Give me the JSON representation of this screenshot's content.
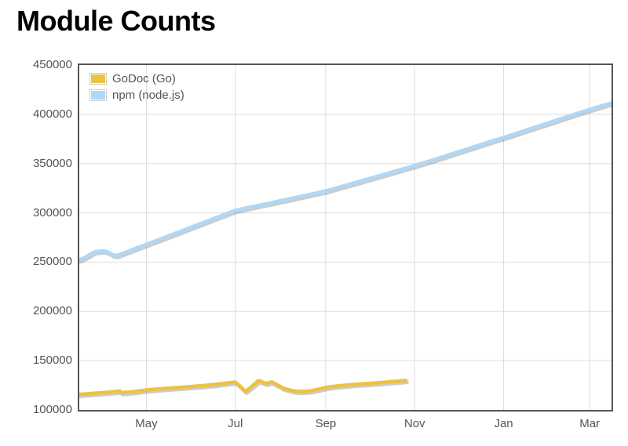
{
  "page": {
    "title": "Module Counts"
  },
  "chart_data": {
    "type": "line",
    "title": "Module Counts",
    "legend_position": "top-left-inside",
    "grid": true,
    "x_axis": {
      "kind": "time",
      "domain_days": [
        0,
        365
      ],
      "ticks": [
        {
          "label": "May",
          "day": 46
        },
        {
          "label": "Jul",
          "day": 107
        },
        {
          "label": "Sep",
          "day": 169
        },
        {
          "label": "Nov",
          "day": 230
        },
        {
          "label": "Jan",
          "day": 291
        },
        {
          "label": "Mar",
          "day": 350
        }
      ]
    },
    "y_axis": {
      "min": 100000,
      "max": 450000,
      "tick_step": 50000,
      "ticks": [
        100000,
        150000,
        200000,
        250000,
        300000,
        350000,
        400000,
        450000
      ],
      "tick_labels": [
        "100000",
        "150000",
        "200000",
        "250000",
        "300000",
        "350000",
        "400000",
        "450000"
      ]
    },
    "series": [
      {
        "key": "godoc",
        "name": "GoDoc (Go)",
        "color": "#EDC240",
        "points": [
          [
            0,
            115800
          ],
          [
            5,
            116300
          ],
          [
            10,
            116900
          ],
          [
            15,
            117400
          ],
          [
            20,
            118100
          ],
          [
            25,
            118700
          ],
          [
            28,
            119100
          ],
          [
            29,
            117500
          ],
          [
            32,
            117900
          ],
          [
            38,
            118700
          ],
          [
            46,
            120300
          ],
          [
            54,
            121200
          ],
          [
            61,
            122100
          ],
          [
            69,
            122900
          ],
          [
            76,
            123700
          ],
          [
            84,
            124600
          ],
          [
            91,
            125500
          ],
          [
            99,
            126900
          ],
          [
            103,
            127700
          ],
          [
            107,
            128300
          ],
          [
            110,
            124500
          ],
          [
            114,
            118800
          ],
          [
            118,
            123500
          ],
          [
            123,
            129800
          ],
          [
            128,
            126900
          ],
          [
            132,
            128400
          ],
          [
            136,
            125300
          ],
          [
            140,
            122000
          ],
          [
            144,
            120300
          ],
          [
            148,
            119200
          ],
          [
            153,
            118800
          ],
          [
            158,
            119200
          ],
          [
            164,
            121000
          ],
          [
            169,
            122800
          ],
          [
            176,
            124200
          ],
          [
            184,
            125400
          ],
          [
            191,
            126200
          ],
          [
            199,
            127000
          ],
          [
            206,
            127700
          ],
          [
            214,
            128700
          ],
          [
            219,
            129300
          ],
          [
            224,
            129900
          ]
        ]
      },
      {
        "key": "npm",
        "name": "npm (node.js)",
        "color": "#AFD8F8",
        "points": [
          [
            0,
            252300
          ],
          [
            3,
            254100
          ],
          [
            6,
            256600
          ],
          [
            9,
            259100
          ],
          [
            11,
            260700
          ],
          [
            13,
            261000
          ],
          [
            16,
            261400
          ],
          [
            18,
            261100
          ],
          [
            20,
            259900
          ],
          [
            23,
            257400
          ],
          [
            26,
            256800
          ],
          [
            29,
            258500
          ],
          [
            34,
            261300
          ],
          [
            40,
            264700
          ],
          [
            46,
            268000
          ],
          [
            53,
            272000
          ],
          [
            61,
            276500
          ],
          [
            69,
            281000
          ],
          [
            76,
            285000
          ],
          [
            84,
            289500
          ],
          [
            91,
            293500
          ],
          [
            99,
            298000
          ],
          [
            107,
            302500
          ],
          [
            114,
            304800
          ],
          [
            122,
            307300
          ],
          [
            130,
            309800
          ],
          [
            137,
            312000
          ],
          [
            145,
            314500
          ],
          [
            152,
            316800
          ],
          [
            160,
            319300
          ],
          [
            169,
            322300
          ],
          [
            177,
            325500
          ],
          [
            184,
            328500
          ],
          [
            192,
            331800
          ],
          [
            199,
            334800
          ],
          [
            207,
            338200
          ],
          [
            214,
            341200
          ],
          [
            222,
            344600
          ],
          [
            230,
            348000
          ],
          [
            238,
            351600
          ],
          [
            245,
            354900
          ],
          [
            253,
            358700
          ],
          [
            260,
            362000
          ],
          [
            268,
            365800
          ],
          [
            275,
            369100
          ],
          [
            283,
            372900
          ],
          [
            291,
            376500
          ],
          [
            298,
            379900
          ],
          [
            306,
            383800
          ],
          [
            314,
            387600
          ],
          [
            321,
            391000
          ],
          [
            329,
            394900
          ],
          [
            336,
            398300
          ],
          [
            343,
            401700
          ],
          [
            350,
            405000
          ],
          [
            357,
            408100
          ],
          [
            365,
            411500
          ]
        ]
      }
    ]
  },
  "colors": {
    "background": "#ffffff",
    "plot_border": "#545454",
    "gridline": "#dddddd",
    "axis_text": "#545454",
    "title_text": "#000000",
    "legend_swatch_border": "#cccccc",
    "line_shadow": "#555555"
  }
}
